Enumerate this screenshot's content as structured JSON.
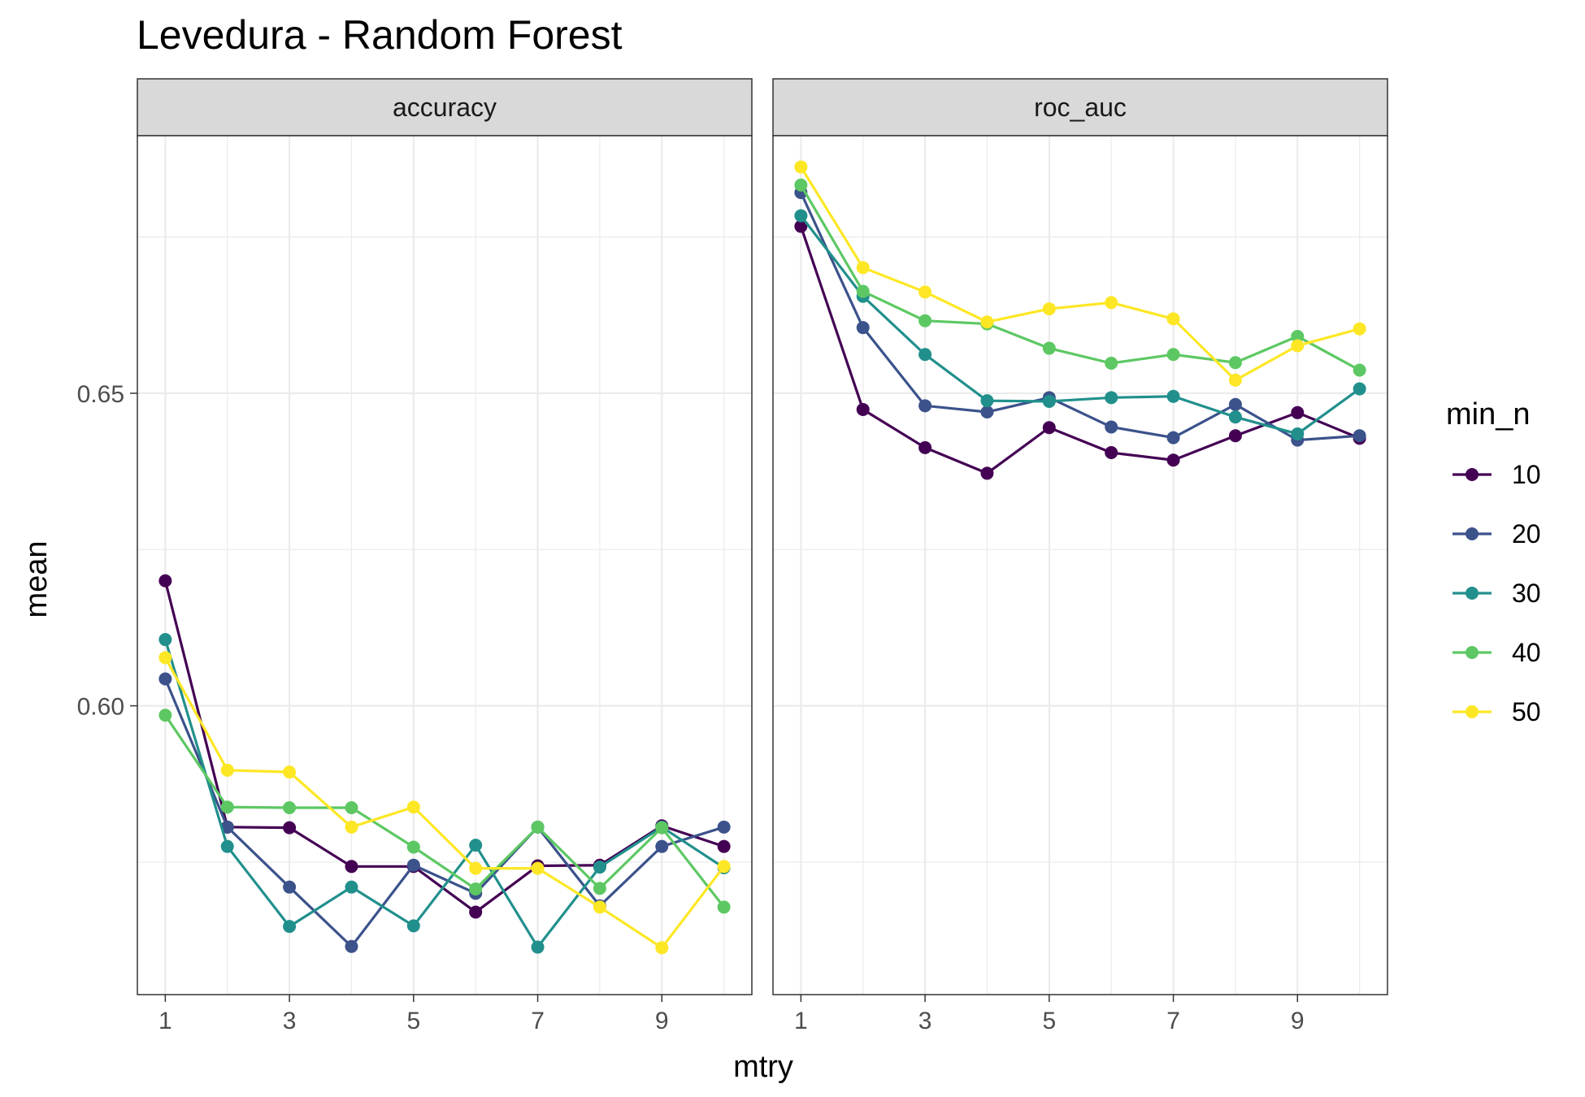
{
  "chart_data": {
    "type": "line",
    "title": "Levedura - Random Forest",
    "xlabel": "mtry",
    "ylabel": "mean",
    "x": [
      1,
      2,
      3,
      4,
      5,
      6,
      7,
      8,
      9,
      10
    ],
    "x_ticks": [
      "1",
      "3",
      "5",
      "7",
      "9"
    ],
    "y_ticks": [
      "0.60",
      "0.65"
    ],
    "ylim": [
      0.5538,
      0.6912
    ],
    "grid": true,
    "legend": {
      "title": "min_n",
      "position": "right"
    },
    "facets": [
      {
        "label": "accuracy",
        "series": [
          {
            "name": "10",
            "color": "#440154",
            "values": [
              0.62,
              0.5806,
              0.5805,
              0.5743,
              0.5743,
              0.567,
              0.5744,
              0.5745,
              0.5808,
              0.5775
            ]
          },
          {
            "name": "20",
            "color": "#3B528B",
            "values": [
              0.6043,
              0.5806,
              0.571,
              0.5615,
              0.5745,
              0.57,
              0.5806,
              0.568,
              0.5775,
              0.5806
            ]
          },
          {
            "name": "30",
            "color": "#21908C",
            "values": [
              0.6106,
              0.5775,
              0.5647,
              0.571,
              0.5648,
              0.5777,
              0.5614,
              0.5742,
              0.5806,
              0.5741
            ]
          },
          {
            "name": "40",
            "color": "#5DC863",
            "values": [
              0.5985,
              0.5838,
              0.5837,
              0.5837,
              0.5774,
              0.5707,
              0.5806,
              0.5708,
              0.5805,
              0.5678
            ]
          },
          {
            "name": "50",
            "color": "#FDE725",
            "values": [
              0.6077,
              0.5897,
              0.5894,
              0.5806,
              0.5838,
              0.574,
              0.574,
              0.5678,
              0.5613,
              0.5743
            ]
          }
        ]
      },
      {
        "label": "roc_auc",
        "series": [
          {
            "name": "10",
            "color": "#440154",
            "values": [
              0.6767,
              0.6474,
              0.6413,
              0.6372,
              0.6445,
              0.6405,
              0.6393,
              0.6432,
              0.6469,
              0.6428
            ]
          },
          {
            "name": "20",
            "color": "#3B528B",
            "values": [
              0.6821,
              0.6605,
              0.648,
              0.647,
              0.6493,
              0.6446,
              0.6429,
              0.6482,
              0.6425,
              0.6432
            ]
          },
          {
            "name": "30",
            "color": "#21908C",
            "values": [
              0.6784,
              0.6655,
              0.6562,
              0.6488,
              0.6487,
              0.6493,
              0.6495,
              0.6462,
              0.6435,
              0.6507
            ]
          },
          {
            "name": "40",
            "color": "#5DC863",
            "values": [
              0.6833,
              0.6663,
              0.6616,
              0.6611,
              0.6572,
              0.6548,
              0.6562,
              0.6549,
              0.6591,
              0.6537
            ]
          },
          {
            "name": "50",
            "color": "#FDE725",
            "values": [
              0.6862,
              0.6701,
              0.6662,
              0.6614,
              0.6635,
              0.6645,
              0.6619,
              0.6521,
              0.6576,
              0.6603
            ]
          }
        ]
      }
    ]
  }
}
